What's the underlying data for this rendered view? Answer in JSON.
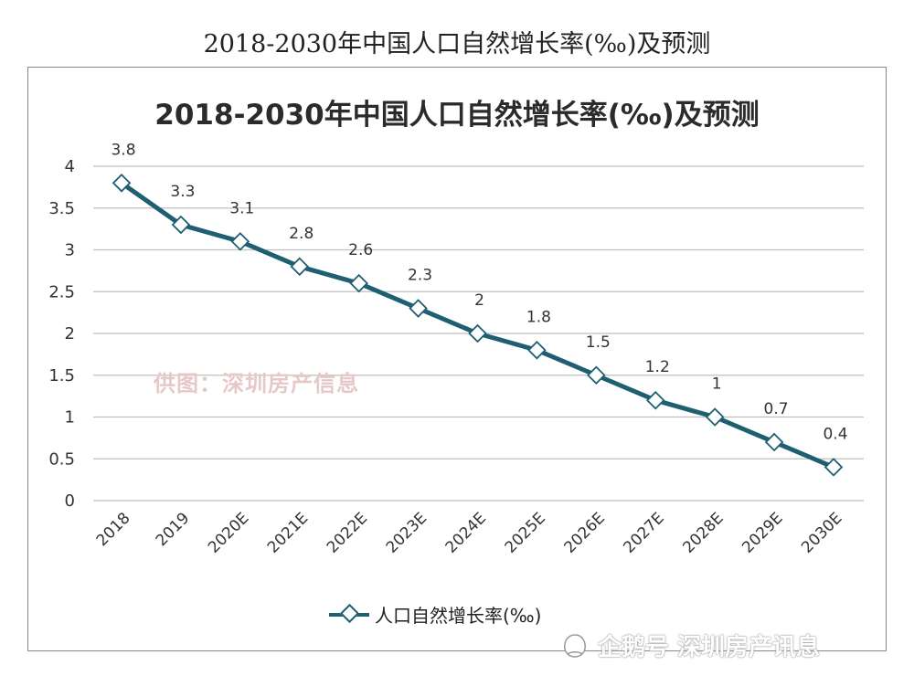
{
  "caption": "2018-2030年中国人口自然增长率(‰)及预测",
  "watermark": "供图：深圳房产信息",
  "footer": {
    "text": "企鹅号 深圳房产讯息",
    "icon": "penguin-icon"
  },
  "colors": {
    "line": "#1f5f72",
    "grid": "#bfbfbf",
    "axis_text": "#333333"
  },
  "chart_data": {
    "type": "line",
    "title": "2018-2030年中国人口自然增长率(‰)及预测",
    "categories": [
      "2018",
      "2019",
      "2020E",
      "2021E",
      "2022E",
      "2023E",
      "2024E",
      "2025E",
      "2026E",
      "2027E",
      "2028E",
      "2029E",
      "2030E"
    ],
    "series": [
      {
        "name": "人口自然增长率(‰)",
        "values": [
          3.8,
          3.3,
          3.1,
          2.8,
          2.6,
          2.3,
          2,
          1.8,
          1.5,
          1.2,
          1,
          0.7,
          0.4
        ],
        "data_labels": [
          "3.8",
          "3.3",
          "3.1",
          "2.8",
          "2.6",
          "2.3",
          "2",
          "1.8",
          "1.5",
          "1.2",
          "1",
          "0.7",
          "0.4"
        ]
      }
    ],
    "yticks": [
      "0",
      "0.5",
      "1",
      "1.5",
      "2",
      "2.5",
      "3",
      "3.5",
      "4"
    ],
    "ylim": [
      0,
      4
    ],
    "xlabel": "",
    "ylabel": "",
    "grid": true,
    "legend": "bottom",
    "marker": "diamond"
  }
}
